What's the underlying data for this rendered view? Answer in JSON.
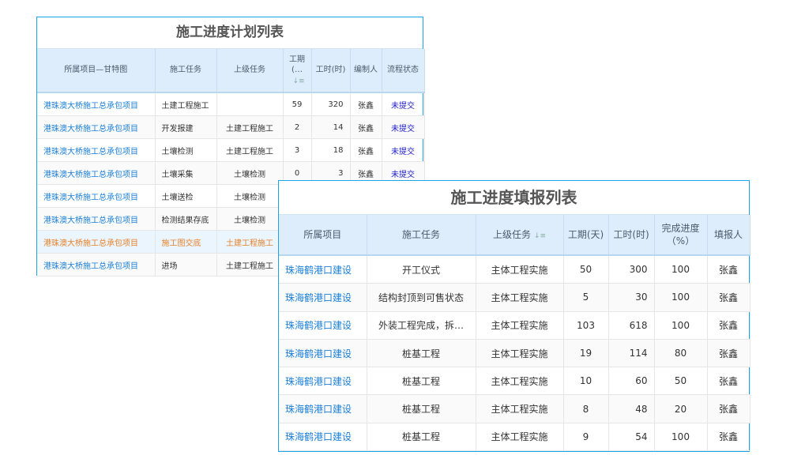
{
  "plan": {
    "title": "施工进度计划列表",
    "headers": [
      "所属项目—甘特图",
      "施工任务",
      "上级任务",
      "工期(…",
      "工时(时)",
      "编制人",
      "流程状态"
    ],
    "rows": [
      [
        "港珠澳大桥施工总承包项目",
        "土建工程施工",
        "",
        "59",
        "320",
        "张鑫",
        "未提交"
      ],
      [
        "港珠澳大桥施工总承包项目",
        "开发报建",
        "土建工程施工",
        "2",
        "14",
        "张鑫",
        "未提交"
      ],
      [
        "港珠澳大桥施工总承包项目",
        "土壤检测",
        "土建工程施工",
        "3",
        "18",
        "张鑫",
        "未提交"
      ],
      [
        "港珠澳大桥施工总承包项目",
        "土壤采集",
        "土壤检测",
        "0",
        "3",
        "张鑫",
        "未提交"
      ],
      [
        "港珠澳大桥施工总承包项目",
        "土壤送检",
        "土壤检测",
        "",
        "",
        "",
        ""
      ],
      [
        "港珠澳大桥施工总承包项目",
        "检测结果存底",
        "土壤检测",
        "",
        "",
        "",
        ""
      ],
      [
        "港珠澳大桥施工总承包项目",
        "施工图交底",
        "土建工程施工",
        "",
        "",
        "",
        ""
      ],
      [
        "港珠澳大桥施工总承包项目",
        "进场",
        "土建工程施工",
        "",
        "",
        "",
        ""
      ]
    ],
    "highlight_row": 6,
    "highlight_color": "#e8812b"
  },
  "report": {
    "title": "施工进度填报列表",
    "headers": [
      "所属项目",
      "施工任务",
      "上级任务",
      "工期(天)",
      "工时(时)",
      "完成进度（%）",
      "填报人"
    ],
    "rows": [
      [
        "珠海鹤港口建设",
        "开工仪式",
        "主体工程实施",
        "50",
        "300",
        "100",
        "张鑫"
      ],
      [
        "珠海鹤港口建设",
        "结构封顶到可售状态",
        "主体工程实施",
        "5",
        "30",
        "100",
        "张鑫"
      ],
      [
        "珠海鹤港口建设",
        "外装工程完成，拆…",
        "主体工程实施",
        "103",
        "618",
        "100",
        "张鑫"
      ],
      [
        "珠海鹤港口建设",
        "桩基工程",
        "主体工程实施",
        "19",
        "114",
        "80",
        "张鑫"
      ],
      [
        "珠海鹤港口建设",
        "桩基工程",
        "主体工程实施",
        "10",
        "60",
        "50",
        "张鑫"
      ],
      [
        "珠海鹤港口建设",
        "桩基工程",
        "主体工程实施",
        "8",
        "48",
        "20",
        "张鑫"
      ],
      [
        "珠海鹤港口建设",
        "桩基工程",
        "主体工程实施",
        "9",
        "54",
        "100",
        "张鑫"
      ]
    ]
  }
}
